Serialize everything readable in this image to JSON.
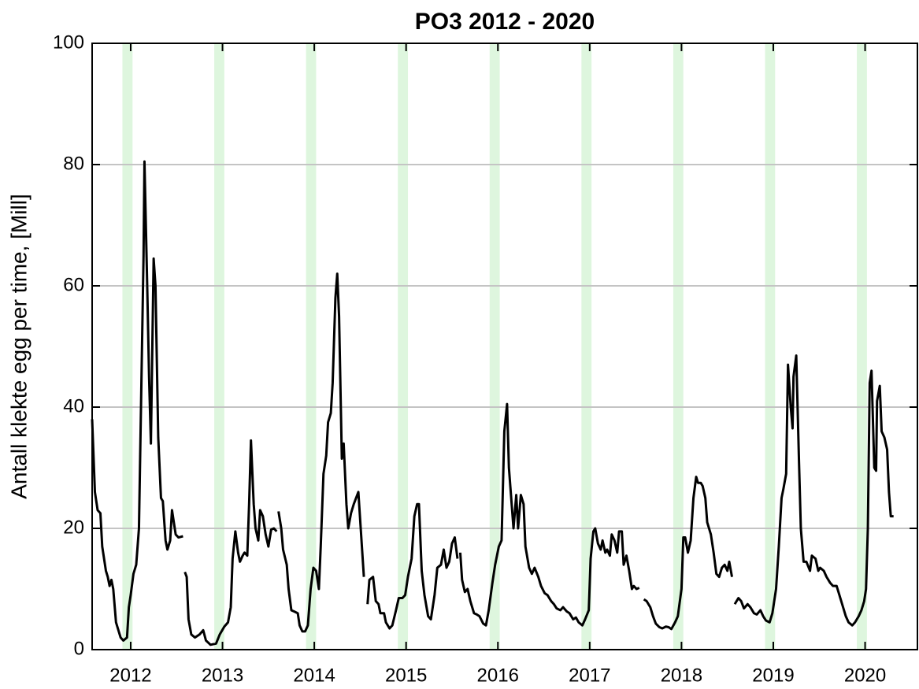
{
  "chart_data": {
    "type": "line",
    "title": "PO3 2012 - 2020",
    "y_label": "Antall klekte egg per time, [Mill]",
    "color": "#000000",
    "band_color": "#c8f0c8",
    "grid": true,
    "xlim": [
      2011.58,
      2020.57
    ],
    "ylim": [
      0,
      100
    ],
    "xticks": [
      2012,
      2013,
      2014,
      2015,
      2016,
      2017,
      2018,
      2019,
      2020
    ],
    "yticks": [
      0,
      20,
      40,
      60,
      80,
      100
    ],
    "bands": [
      [
        2011.91,
        2012.02
      ],
      [
        2012.91,
        2013.02
      ],
      [
        2013.91,
        2014.02
      ],
      [
        2014.91,
        2015.02
      ],
      [
        2015.91,
        2016.02
      ],
      [
        2016.91,
        2017.02
      ],
      [
        2017.91,
        2018.02
      ],
      [
        2018.91,
        2019.02
      ],
      [
        2019.91,
        2020.02
      ]
    ],
    "x": [
      2011.58,
      2011.61,
      2011.64,
      2011.67,
      2011.69,
      2011.73,
      2011.75,
      2011.77,
      2011.79,
      2011.81,
      2011.84,
      2011.86,
      2011.89,
      2011.92,
      2011.96,
      2011.98,
      2012.0,
      2012.03,
      2012.06,
      2012.09,
      2012.11,
      2012.14,
      2012.15,
      2012.18,
      2012.2,
      2012.22,
      2012.25,
      2012.27,
      2012.3,
      2012.33,
      2012.35,
      2012.38,
      2012.4,
      2012.43,
      2012.45,
      2012.49,
      2012.52,
      2012.57,
      2012.58,
      2012.59,
      2012.61,
      2012.63,
      2012.66,
      2012.7,
      2012.75,
      2012.79,
      2012.82,
      2012.87,
      2012.93,
      2012.97,
      2013.02,
      2013.06,
      2013.09,
      2013.11,
      2013.14,
      2013.17,
      2013.19,
      2013.22,
      2013.24,
      2013.27,
      2013.29,
      2013.31,
      2013.34,
      2013.36,
      2013.39,
      2013.41,
      2013.44,
      2013.47,
      2013.5,
      2013.53,
      2013.56,
      2013.59,
      2013.6,
      2013.61,
      2013.64,
      2013.66,
      2013.7,
      2013.72,
      2013.75,
      2013.78,
      2013.82,
      2013.84,
      2013.87,
      2013.9,
      2013.93,
      2013.96,
      2013.99,
      2014.02,
      2014.05,
      2014.07,
      2014.1,
      2014.13,
      2014.15,
      2014.18,
      2014.2,
      2014.23,
      2014.25,
      2014.27,
      2014.3,
      2014.32,
      2014.35,
      2014.37,
      2014.4,
      2014.43,
      2014.48,
      2014.51,
      2014.54,
      2014.56,
      2014.58,
      2014.6,
      2014.64,
      2014.67,
      2014.7,
      2014.72,
      2014.76,
      2014.78,
      2014.82,
      2014.85,
      2014.89,
      2014.92,
      2014.96,
      2014.99,
      2015.02,
      2015.06,
      2015.09,
      2015.12,
      2015.14,
      2015.17,
      2015.2,
      2015.24,
      2015.27,
      2015.31,
      2015.34,
      2015.38,
      2015.41,
      2015.44,
      2015.47,
      2015.5,
      2015.53,
      2015.56,
      2015.57,
      2015.59,
      2015.61,
      2015.64,
      2015.67,
      2015.7,
      2015.74,
      2015.77,
      2015.8,
      2015.84,
      2015.87,
      2015.9,
      2015.94,
      2015.97,
      2016.01,
      2016.04,
      2016.07,
      2016.1,
      2016.12,
      2016.15,
      2016.17,
      2016.2,
      2016.22,
      2016.25,
      2016.28,
      2016.3,
      2016.34,
      2016.37,
      2016.4,
      2016.44,
      2016.47,
      2016.51,
      2016.54,
      2016.58,
      2016.61,
      2016.64,
      2016.68,
      2016.71,
      2016.75,
      2016.78,
      2016.82,
      2016.85,
      2016.88,
      2016.92,
      2016.95,
      2016.99,
      2017.01,
      2017.04,
      2017.06,
      2017.09,
      2017.12,
      2017.14,
      2017.17,
      2017.19,
      2017.22,
      2017.24,
      2017.27,
      2017.3,
      2017.32,
      2017.35,
      2017.37,
      2017.4,
      2017.43,
      2017.46,
      2017.48,
      2017.51,
      2017.54,
      2017.56,
      2017.59,
      2017.62,
      2017.66,
      2017.69,
      2017.72,
      2017.76,
      2017.79,
      2017.83,
      2017.86,
      2017.89,
      2017.93,
      2017.96,
      2018.0,
      2018.02,
      2018.04,
      2018.07,
      2018.1,
      2018.13,
      2018.16,
      2018.18,
      2018.21,
      2018.23,
      2018.26,
      2018.28,
      2018.32,
      2018.35,
      2018.38,
      2018.41,
      2018.44,
      2018.47,
      2018.5,
      2018.52,
      2018.55,
      2018.57,
      2018.58,
      2018.62,
      2018.65,
      2018.68,
      2018.72,
      2018.75,
      2018.79,
      2018.82,
      2018.86,
      2018.89,
      2018.92,
      2018.96,
      2018.99,
      2019.03,
      2019.06,
      2019.09,
      2019.11,
      2019.14,
      2019.16,
      2019.19,
      2019.21,
      2019.22,
      2019.25,
      2019.28,
      2019.3,
      2019.33,
      2019.36,
      2019.4,
      2019.42,
      2019.46,
      2019.49,
      2019.51,
      2019.55,
      2019.58,
      2019.62,
      2019.65,
      2019.69,
      2019.72,
      2019.75,
      2019.79,
      2019.82,
      2019.86,
      2019.89,
      2019.93,
      2019.96,
      2019.99,
      2020.01,
      2020.03,
      2020.05,
      2020.07,
      2020.1,
      2020.12,
      2020.13,
      2020.16,
      2020.18,
      2020.21,
      2020.24,
      2020.26,
      2020.28,
      2020.31
    ],
    "values": [
      38,
      26,
      23,
      22.5,
      17,
      13,
      12,
      10.5,
      11.5,
      10,
      4.5,
      3.5,
      2,
      1.5,
      2,
      7,
      9,
      12.5,
      14,
      20,
      38,
      65,
      80.5,
      60,
      45,
      34,
      64.5,
      60,
      35,
      25,
      24.5,
      18,
      16.5,
      18,
      23,
      19,
      18.5,
      18.7,
      null,
      12.8,
      12,
      5,
      2.5,
      2,
      2.5,
      3.2,
      1.5,
      0.8,
      1,
      2.5,
      3.8,
      4.5,
      7,
      15,
      19.5,
      16,
      14.5,
      15.5,
      16,
      15.5,
      24,
      34.5,
      24,
      20,
      18,
      23,
      22,
      19,
      17,
      19.8,
      20,
      19.5,
      null,
      22.8,
      20,
      16.5,
      14,
      10,
      6.5,
      6.3,
      6,
      4,
      3,
      3,
      4,
      10,
      13.5,
      13,
      10,
      17,
      29,
      32,
      37.5,
      39,
      44,
      58,
      62,
      55,
      31.5,
      34,
      24,
      20,
      22.5,
      24,
      26,
      19,
      12,
      null,
      7.5,
      11.5,
      12,
      8,
      7.5,
      6,
      6,
      4.5,
      3.5,
      4,
      6.5,
      8.5,
      8.5,
      9,
      12,
      15,
      22,
      24,
      24,
      13,
      9,
      5.5,
      5,
      9,
      13.5,
      14,
      16.5,
      13.5,
      14.5,
      17.5,
      18.5,
      15,
      null,
      16,
      11.5,
      9.5,
      10,
      8,
      6,
      5.8,
      5.5,
      4.3,
      4,
      6.5,
      11,
      14,
      17,
      18,
      36,
      40.5,
      30,
      24,
      20,
      25.5,
      20,
      25.5,
      24,
      17,
      13.5,
      12.5,
      13.5,
      12,
      10.5,
      9.3,
      9,
      8,
      7.5,
      6.8,
      6.5,
      7,
      6.3,
      6,
      5,
      5.3,
      4.5,
      4,
      5,
      6.5,
      15,
      19.5,
      20,
      17.5,
      16.5,
      18,
      16,
      16.5,
      15.5,
      19,
      18,
      16,
      19.5,
      19.5,
      14,
      15.5,
      13,
      10,
      10.5,
      10,
      10.2,
      null,
      8.3,
      8,
      7,
      5.5,
      4.3,
      3.7,
      3.5,
      3.8,
      3.7,
      3.4,
      4.5,
      5.5,
      10,
      18.5,
      18.5,
      16,
      18,
      25,
      28.5,
      27.5,
      27.5,
      27,
      25,
      21,
      19,
      16,
      12.5,
      12,
      13.5,
      14,
      13,
      14.5,
      12,
      null,
      7.5,
      8.5,
      8,
      6.8,
      7.5,
      7,
      6,
      5.8,
      6.5,
      5.5,
      4.8,
      4.5,
      6,
      10,
      17,
      25,
      26.5,
      29,
      47,
      40,
      36.5,
      45,
      48.5,
      31,
      20,
      14.5,
      14.5,
      13,
      15.5,
      15,
      13,
      13.5,
      13,
      12,
      11,
      10.5,
      10.5,
      9,
      7.5,
      5.5,
      4.5,
      4,
      4.5,
      5.5,
      6.5,
      8,
      10,
      20,
      44,
      46,
      30,
      29.5,
      41,
      43.5,
      36,
      35,
      33,
      26,
      22,
      22
    ]
  }
}
